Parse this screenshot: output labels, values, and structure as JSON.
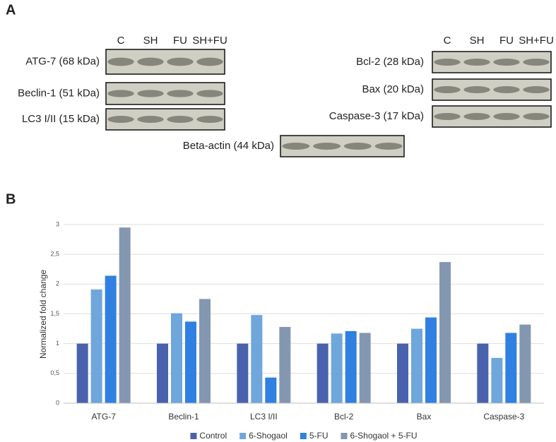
{
  "panel_a": {
    "label": "A",
    "left_blot": {
      "columns": [
        "C",
        "SH",
        "FU",
        "SH+FU"
      ],
      "rows": [
        "ATG-7 (68 kDa)",
        "Beclin-1 (51 kDa)",
        "LC3 I/II (15 kDa)"
      ]
    },
    "right_blot": {
      "columns": [
        "C",
        "SH",
        "FU",
        "SH+FU"
      ],
      "rows": [
        "Bcl-2 (28 kDa)",
        "Bax (20 kDa)",
        "Caspase-3 (17 kDa)"
      ]
    },
    "loading_control": "Beta-actin (44 kDa)"
  },
  "chart_data": {
    "type": "bar",
    "panel_label": "B",
    "y_label": "Normalized fold change",
    "categories": [
      "ATG-7",
      "Beclin-1",
      "LC3 I/II",
      "Bcl-2",
      "Bax",
      "Caspase-3"
    ],
    "series": [
      {
        "name": "Control",
        "color": "#4a62ad",
        "values": [
          1,
          1,
          1,
          1,
          1,
          1
        ]
      },
      {
        "name": "6-Shogaol",
        "color": "#6fa6dc",
        "values": [
          1.91,
          1.51,
          1.48,
          1.17,
          1.25,
          0.76
        ]
      },
      {
        "name": "5-FU",
        "color": "#2f80e0",
        "values": [
          2.14,
          1.37,
          0.43,
          1.21,
          1.44,
          1.18
        ]
      },
      {
        "name": "6-Shogaol + 5-FU",
        "color": "#8497b0",
        "values": [
          2.95,
          1.75,
          1.28,
          1.18,
          2.37,
          1.32
        ]
      }
    ],
    "ylim": [
      0,
      3
    ],
    "yticks": [
      0,
      {
        "value": 0.5,
        "label": "0,5"
      },
      1,
      {
        "value": 1.5,
        "label": "1,5"
      },
      2,
      {
        "value": 2.5,
        "label": "2,5"
      },
      3
    ],
    "grid": true,
    "legend": "bottom"
  }
}
